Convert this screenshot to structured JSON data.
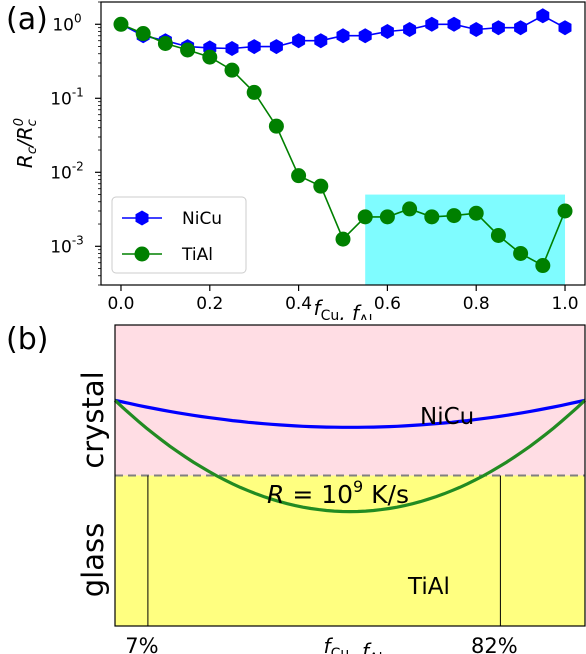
{
  "chart_data": [
    {
      "panel_label": "(a)",
      "type": "line",
      "ylabel": "R_c/R_c^0",
      "xlabel": "f_Cu, f_Al",
      "yscale": "log",
      "ylim": [
        0.0003,
        2
      ],
      "xlim": [
        -0.045,
        1.045
      ],
      "x_ticks": [
        "0.0",
        "0.2",
        "0.4",
        "0.6",
        "0.8",
        "1.0"
      ],
      "y_ticks": [
        {
          "value": 1,
          "label": "10^0"
        },
        {
          "value": 0.1,
          "label": "10^-1"
        },
        {
          "value": 0.01,
          "label": "10^-2"
        },
        {
          "value": 0.001,
          "label": "10^-3"
        }
      ],
      "legend_position": "lower-left",
      "highlight_region": {
        "x": [
          0.55,
          1.0
        ],
        "y": [
          0.0003,
          0.005
        ],
        "color": "#7ffcff"
      },
      "series": [
        {
          "name": "NiCu",
          "color": "#0000ff",
          "marker": "hexagon",
          "x": [
            0.0,
            0.05,
            0.1,
            0.15,
            0.2,
            0.25,
            0.3,
            0.35,
            0.4,
            0.45,
            0.5,
            0.55,
            0.6,
            0.65,
            0.7,
            0.75,
            0.8,
            0.85,
            0.9,
            0.95,
            1.0
          ],
          "y": [
            1.0,
            0.7,
            0.6,
            0.5,
            0.48,
            0.47,
            0.5,
            0.5,
            0.6,
            0.6,
            0.7,
            0.7,
            0.8,
            0.85,
            1.0,
            1.0,
            0.85,
            0.9,
            0.9,
            1.3,
            0.9
          ]
        },
        {
          "name": "TiAl",
          "color": "#008000",
          "marker": "circle",
          "x": [
            0.0,
            0.05,
            0.1,
            0.15,
            0.2,
            0.25,
            0.3,
            0.35,
            0.4,
            0.45,
            0.5,
            0.55,
            0.6,
            0.65,
            0.7,
            0.75,
            0.8,
            0.85,
            0.9,
            0.95,
            1.0
          ],
          "y": [
            1.0,
            0.75,
            0.55,
            0.45,
            0.36,
            0.24,
            0.12,
            0.042,
            0.009,
            0.0065,
            0.00125,
            0.0025,
            0.0025,
            0.0032,
            0.0025,
            0.0026,
            0.0028,
            0.0014,
            0.0008,
            0.00055,
            0.003
          ]
        }
      ]
    },
    {
      "panel_label": "(b)",
      "type": "area",
      "region_labels": {
        "top": "crystal",
        "bottom": "glass"
      },
      "threshold": {
        "label_prefix": "R",
        "label_eq": " = 10",
        "label_exp": "9",
        "label_unit": " K/s",
        "y": 0.5
      },
      "xlabel": "f_Cu, f_Al",
      "tick_labels": [
        {
          "x": 0.07,
          "label": "7%"
        },
        {
          "x": 0.82,
          "label": "82%"
        }
      ],
      "colors": {
        "crystal": "#ffdde4",
        "glass": "#ffff80",
        "threshold": "#808080"
      },
      "series": [
        {
          "name": "NiCu",
          "color": "#0000ff",
          "x": [
            0,
            0.5,
            1
          ],
          "y": [
            0.75,
            0.66,
            0.75
          ],
          "shape": "parabola"
        },
        {
          "name": "TiAl",
          "color": "#228b22",
          "x": [
            0,
            0.5,
            1
          ],
          "y": [
            0.75,
            0.38,
            0.75
          ],
          "shape": "parabola"
        }
      ]
    }
  ]
}
